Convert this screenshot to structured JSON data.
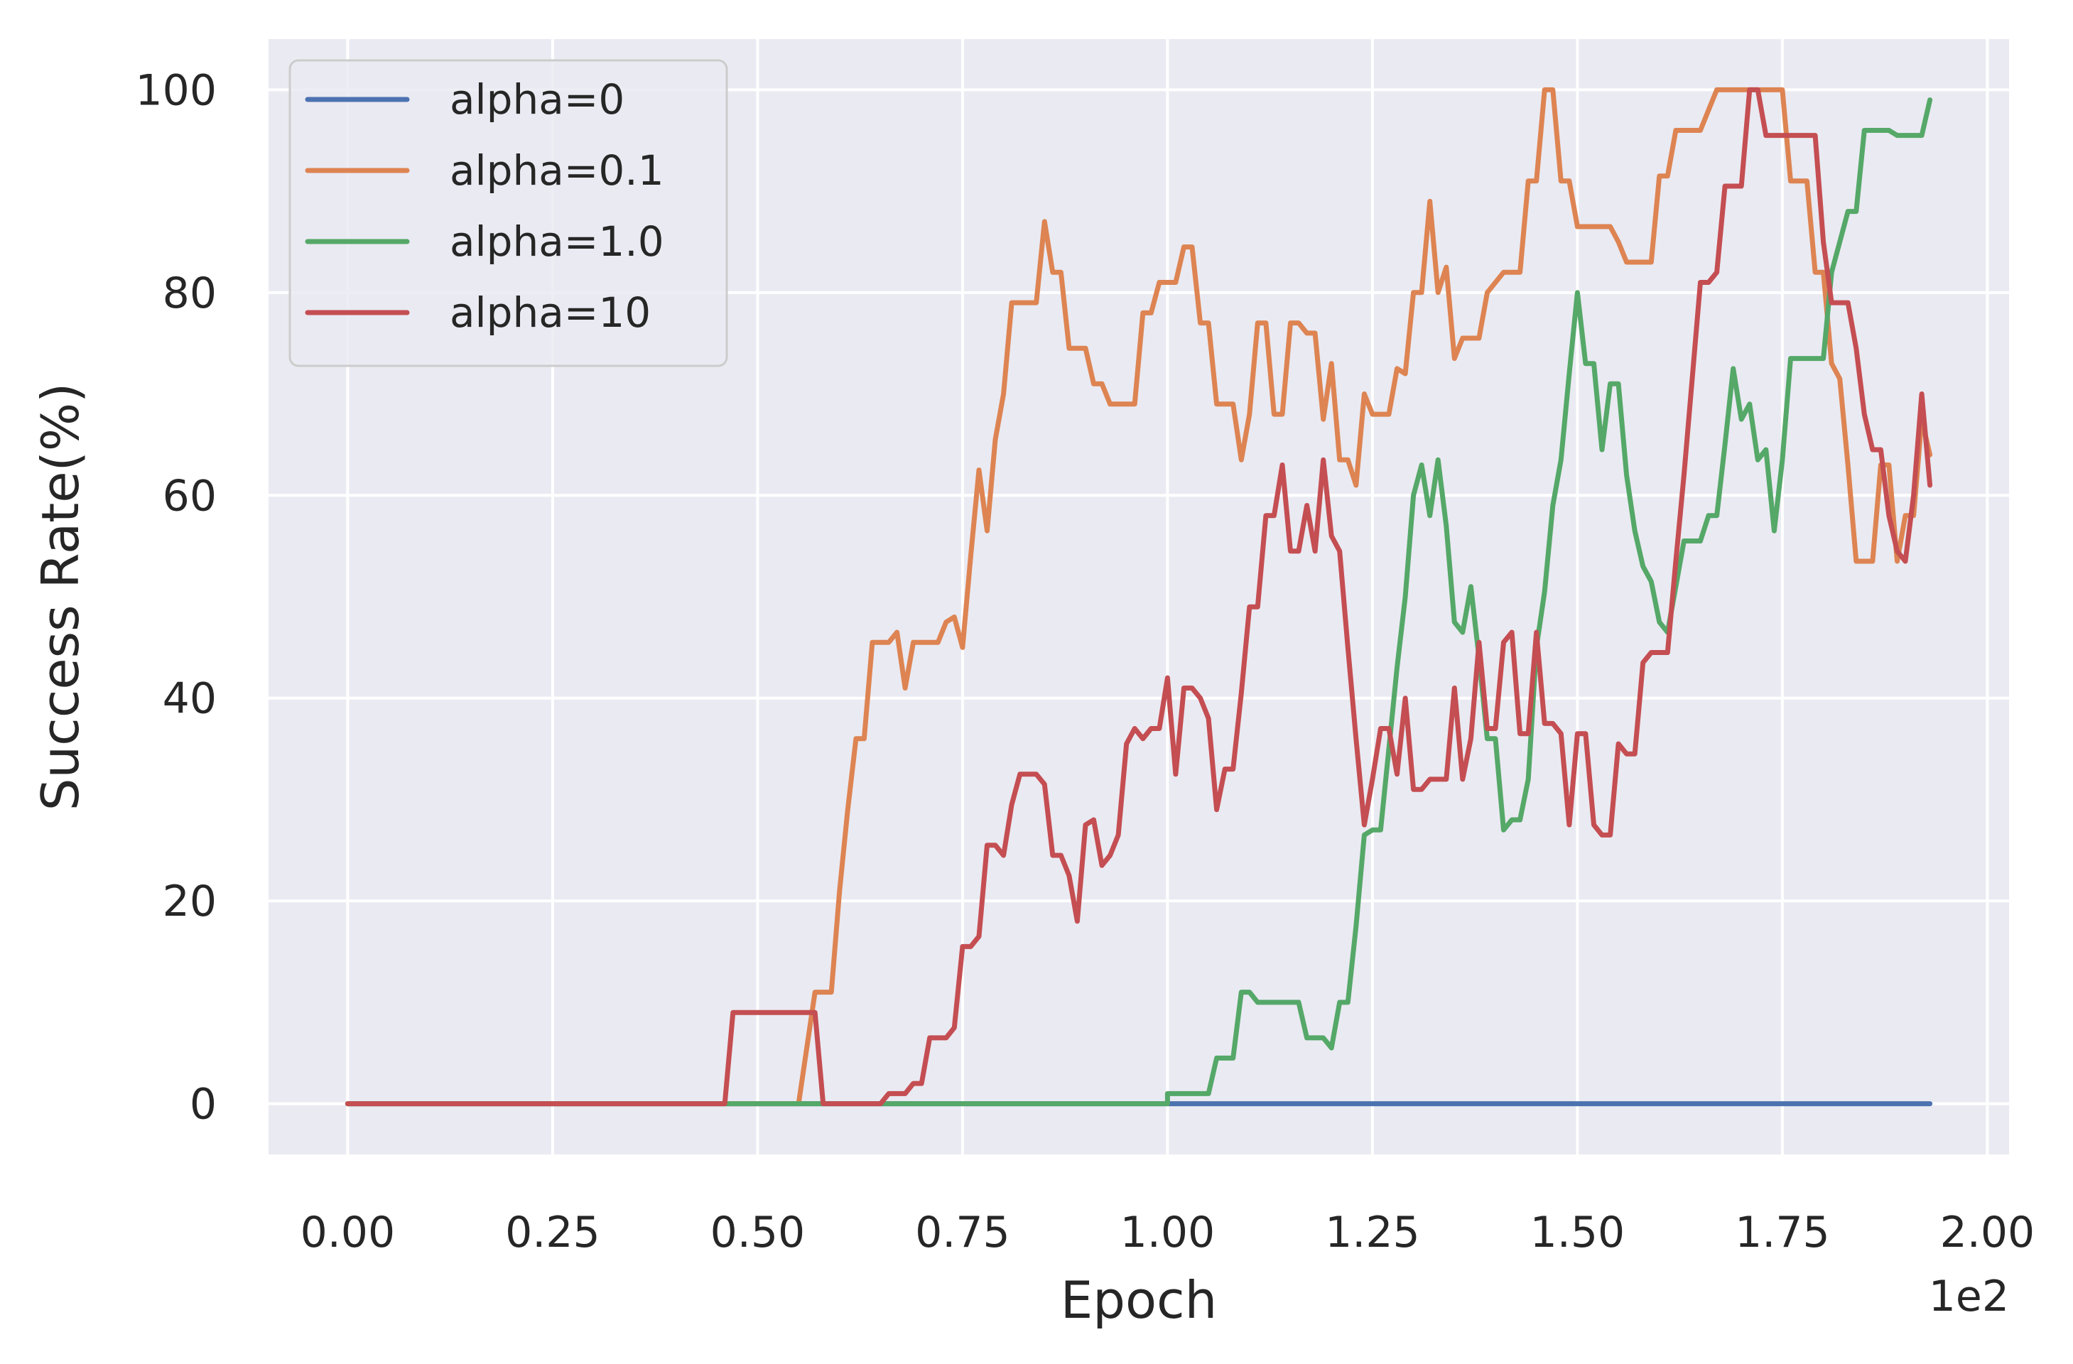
{
  "chart_data": {
    "type": "line",
    "xlabel": "Epoch",
    "ylabel": "Success Rate(%)",
    "x_offset_label": "1e2",
    "xlim": [
      -0.0965,
      2.0265
    ],
    "ylim": [
      -5,
      105
    ],
    "xticks": [
      0.0,
      0.25,
      0.5,
      0.75,
      1.0,
      1.25,
      1.5,
      1.75,
      2.0
    ],
    "xtick_labels": [
      "0.00",
      "0.25",
      "0.50",
      "0.75",
      "1.00",
      "1.25",
      "1.50",
      "1.75",
      "2.00"
    ],
    "yticks": [
      0,
      20,
      40,
      60,
      80,
      100
    ],
    "ytick_labels": [
      "0",
      "20",
      "40",
      "60",
      "80",
      "100"
    ],
    "grid": true,
    "legend_position": "top-left",
    "background": "#EAEAF2",
    "series": [
      {
        "name": "alpha=0",
        "color": "#4C72B0",
        "points": [
          [
            0.0,
            0
          ],
          [
            1.93,
            0
          ]
        ]
      },
      {
        "name": "alpha=0.1",
        "color": "#DD8452",
        "points": [
          [
            0.0,
            0
          ],
          [
            0.55,
            0
          ],
          [
            0.57,
            11
          ],
          [
            0.59,
            11
          ],
          [
            0.6,
            21
          ],
          [
            0.61,
            29
          ],
          [
            0.62,
            36
          ],
          [
            0.63,
            36
          ],
          [
            0.64,
            45.5
          ],
          [
            0.66,
            45.5
          ],
          [
            0.67,
            46.5
          ],
          [
            0.68,
            41
          ],
          [
            0.69,
            45.5
          ],
          [
            0.72,
            45.5
          ],
          [
            0.73,
            47.5
          ],
          [
            0.74,
            48
          ],
          [
            0.75,
            45
          ],
          [
            0.76,
            54
          ],
          [
            0.77,
            62.5
          ],
          [
            0.78,
            56.5
          ],
          [
            0.79,
            65.5
          ],
          [
            0.8,
            70
          ],
          [
            0.81,
            79
          ],
          [
            0.84,
            79
          ],
          [
            0.85,
            87
          ],
          [
            0.86,
            82
          ],
          [
            0.87,
            82
          ],
          [
            0.88,
            74.5
          ],
          [
            0.9,
            74.5
          ],
          [
            0.91,
            71
          ],
          [
            0.92,
            71
          ],
          [
            0.93,
            69
          ],
          [
            0.96,
            69
          ],
          [
            0.97,
            78
          ],
          [
            0.98,
            78
          ],
          [
            0.99,
            81
          ],
          [
            1.01,
            81
          ],
          [
            1.02,
            84.5
          ],
          [
            1.03,
            84.5
          ],
          [
            1.04,
            77
          ],
          [
            1.05,
            77
          ],
          [
            1.06,
            69
          ],
          [
            1.08,
            69
          ],
          [
            1.09,
            63.5
          ],
          [
            1.1,
            68
          ],
          [
            1.11,
            77
          ],
          [
            1.12,
            77
          ],
          [
            1.13,
            68
          ],
          [
            1.14,
            68
          ],
          [
            1.15,
            77
          ],
          [
            1.16,
            77
          ],
          [
            1.17,
            76
          ],
          [
            1.18,
            76
          ],
          [
            1.19,
            67.5
          ],
          [
            1.2,
            73
          ],
          [
            1.21,
            63.5
          ],
          [
            1.22,
            63.5
          ],
          [
            1.23,
            61
          ],
          [
            1.24,
            70
          ],
          [
            1.25,
            68
          ],
          [
            1.27,
            68
          ],
          [
            1.28,
            72.5
          ],
          [
            1.29,
            72
          ],
          [
            1.3,
            80
          ],
          [
            1.31,
            80
          ],
          [
            1.32,
            89
          ],
          [
            1.33,
            80
          ],
          [
            1.34,
            82.5
          ],
          [
            1.35,
            73.5
          ],
          [
            1.36,
            75.5
          ],
          [
            1.38,
            75.5
          ],
          [
            1.39,
            80
          ],
          [
            1.41,
            82
          ],
          [
            1.43,
            82
          ],
          [
            1.44,
            91
          ],
          [
            1.45,
            91
          ],
          [
            1.46,
            100
          ],
          [
            1.47,
            100
          ],
          [
            1.48,
            91
          ],
          [
            1.49,
            91
          ],
          [
            1.5,
            86.5
          ],
          [
            1.54,
            86.5
          ],
          [
            1.55,
            85
          ],
          [
            1.56,
            83
          ],
          [
            1.59,
            83
          ],
          [
            1.6,
            91.5
          ],
          [
            1.61,
            91.5
          ],
          [
            1.62,
            96
          ],
          [
            1.65,
            96
          ],
          [
            1.66,
            98
          ],
          [
            1.67,
            100
          ],
          [
            1.74,
            100
          ],
          [
            1.75,
            100
          ],
          [
            1.76,
            91
          ],
          [
            1.78,
            91
          ],
          [
            1.79,
            82
          ],
          [
            1.8,
            82
          ],
          [
            1.81,
            73
          ],
          [
            1.82,
            71.5
          ],
          [
            1.83,
            63
          ],
          [
            1.84,
            53.5
          ],
          [
            1.86,
            53.5
          ],
          [
            1.87,
            63
          ],
          [
            1.88,
            63
          ],
          [
            1.89,
            53.5
          ],
          [
            1.9,
            58
          ],
          [
            1.91,
            58
          ],
          [
            1.92,
            67.5
          ],
          [
            1.93,
            64
          ]
        ]
      },
      {
        "name": "alpha=1.0",
        "color": "#55A868",
        "points": [
          [
            0.0,
            0
          ],
          [
            1.0,
            0
          ],
          [
            1.0,
            1
          ],
          [
            1.05,
            1
          ],
          [
            1.06,
            4.5
          ],
          [
            1.08,
            4.5
          ],
          [
            1.09,
            11
          ],
          [
            1.1,
            11
          ],
          [
            1.11,
            10
          ],
          [
            1.16,
            10
          ],
          [
            1.17,
            6.5
          ],
          [
            1.19,
            6.5
          ],
          [
            1.2,
            5.5
          ],
          [
            1.21,
            10
          ],
          [
            1.22,
            10
          ],
          [
            1.23,
            17.5
          ],
          [
            1.24,
            26.5
          ],
          [
            1.25,
            27
          ],
          [
            1.26,
            27
          ],
          [
            1.27,
            35
          ],
          [
            1.28,
            43
          ],
          [
            1.29,
            50
          ],
          [
            1.3,
            60
          ],
          [
            1.31,
            63
          ],
          [
            1.32,
            58
          ],
          [
            1.33,
            63.5
          ],
          [
            1.34,
            57
          ],
          [
            1.35,
            47.5
          ],
          [
            1.36,
            46.5
          ],
          [
            1.37,
            51
          ],
          [
            1.38,
            44
          ],
          [
            1.39,
            36
          ],
          [
            1.4,
            36
          ],
          [
            1.41,
            27
          ],
          [
            1.42,
            28
          ],
          [
            1.43,
            28
          ],
          [
            1.44,
            32
          ],
          [
            1.45,
            45
          ],
          [
            1.46,
            50.5
          ],
          [
            1.47,
            59
          ],
          [
            1.48,
            63.5
          ],
          [
            1.49,
            72
          ],
          [
            1.5,
            80
          ],
          [
            1.51,
            73
          ],
          [
            1.52,
            73
          ],
          [
            1.53,
            64.5
          ],
          [
            1.54,
            71
          ],
          [
            1.55,
            71
          ],
          [
            1.56,
            62
          ],
          [
            1.57,
            56.5
          ],
          [
            1.58,
            53
          ],
          [
            1.59,
            51.5
          ],
          [
            1.6,
            47.5
          ],
          [
            1.61,
            46.5
          ],
          [
            1.62,
            51
          ],
          [
            1.63,
            55.5
          ],
          [
            1.65,
            55.5
          ],
          [
            1.66,
            58
          ],
          [
            1.67,
            58
          ],
          [
            1.68,
            65
          ],
          [
            1.69,
            72.5
          ],
          [
            1.7,
            67.5
          ],
          [
            1.71,
            69
          ],
          [
            1.72,
            63.5
          ],
          [
            1.73,
            64.5
          ],
          [
            1.74,
            56.5
          ],
          [
            1.75,
            63.5
          ],
          [
            1.76,
            73.5
          ],
          [
            1.8,
            73.5
          ],
          [
            1.81,
            82
          ],
          [
            1.82,
            85
          ],
          [
            1.83,
            88
          ],
          [
            1.84,
            88
          ],
          [
            1.85,
            96
          ],
          [
            1.88,
            96
          ],
          [
            1.89,
            95.5
          ],
          [
            1.92,
            95.5
          ],
          [
            1.93,
            99
          ]
        ]
      },
      {
        "name": "alpha=10",
        "color": "#C44E52",
        "points": [
          [
            0.0,
            0
          ],
          [
            0.46,
            0
          ],
          [
            0.47,
            9
          ],
          [
            0.57,
            9
          ],
          [
            0.58,
            0
          ],
          [
            0.65,
            0
          ],
          [
            0.66,
            1
          ],
          [
            0.68,
            1
          ],
          [
            0.69,
            2
          ],
          [
            0.7,
            2
          ],
          [
            0.71,
            6.5
          ],
          [
            0.73,
            6.5
          ],
          [
            0.74,
            7.5
          ],
          [
            0.75,
            15.5
          ],
          [
            0.76,
            15.5
          ],
          [
            0.77,
            16.5
          ],
          [
            0.78,
            25.5
          ],
          [
            0.79,
            25.5
          ],
          [
            0.8,
            24.5
          ],
          [
            0.81,
            29.5
          ],
          [
            0.82,
            32.5
          ],
          [
            0.84,
            32.5
          ],
          [
            0.85,
            31.5
          ],
          [
            0.86,
            24.5
          ],
          [
            0.87,
            24.5
          ],
          [
            0.88,
            22.5
          ],
          [
            0.89,
            18
          ],
          [
            0.9,
            27.5
          ],
          [
            0.91,
            28
          ],
          [
            0.92,
            23.5
          ],
          [
            0.93,
            24.5
          ],
          [
            0.94,
            26.5
          ],
          [
            0.95,
            35.5
          ],
          [
            0.96,
            37
          ],
          [
            0.97,
            36
          ],
          [
            0.98,
            37
          ],
          [
            0.99,
            37
          ],
          [
            1.0,
            42
          ],
          [
            1.01,
            32.5
          ],
          [
            1.02,
            41
          ],
          [
            1.03,
            41
          ],
          [
            1.04,
            40
          ],
          [
            1.05,
            38
          ],
          [
            1.06,
            29
          ],
          [
            1.07,
            33
          ],
          [
            1.08,
            33
          ],
          [
            1.09,
            40.5
          ],
          [
            1.1,
            49
          ],
          [
            1.11,
            49
          ],
          [
            1.12,
            58
          ],
          [
            1.13,
            58
          ],
          [
            1.14,
            63
          ],
          [
            1.15,
            54.5
          ],
          [
            1.16,
            54.5
          ],
          [
            1.17,
            59
          ],
          [
            1.18,
            54.5
          ],
          [
            1.19,
            63.5
          ],
          [
            1.2,
            56
          ],
          [
            1.21,
            54.5
          ],
          [
            1.22,
            45
          ],
          [
            1.23,
            36
          ],
          [
            1.24,
            27.5
          ],
          [
            1.25,
            32
          ],
          [
            1.26,
            37
          ],
          [
            1.27,
            37
          ],
          [
            1.28,
            32.5
          ],
          [
            1.29,
            40
          ],
          [
            1.3,
            31
          ],
          [
            1.31,
            31
          ],
          [
            1.32,
            32
          ],
          [
            1.34,
            32
          ],
          [
            1.35,
            41
          ],
          [
            1.36,
            32
          ],
          [
            1.37,
            36
          ],
          [
            1.38,
            45.5
          ],
          [
            1.39,
            37
          ],
          [
            1.4,
            37
          ],
          [
            1.41,
            45.5
          ],
          [
            1.42,
            46.5
          ],
          [
            1.43,
            36.5
          ],
          [
            1.44,
            36.5
          ],
          [
            1.45,
            46.5
          ],
          [
            1.46,
            37.5
          ],
          [
            1.47,
            37.5
          ],
          [
            1.48,
            36.5
          ],
          [
            1.49,
            27.5
          ],
          [
            1.5,
            36.5
          ],
          [
            1.51,
            36.5
          ],
          [
            1.52,
            27.5
          ],
          [
            1.53,
            26.5
          ],
          [
            1.54,
            26.5
          ],
          [
            1.55,
            35.5
          ],
          [
            1.56,
            34.5
          ],
          [
            1.57,
            34.5
          ],
          [
            1.58,
            43.5
          ],
          [
            1.59,
            44.5
          ],
          [
            1.61,
            44.5
          ],
          [
            1.62,
            53.5
          ],
          [
            1.63,
            62
          ],
          [
            1.64,
            71.5
          ],
          [
            1.65,
            81
          ],
          [
            1.66,
            81
          ],
          [
            1.67,
            82
          ],
          [
            1.68,
            90.5
          ],
          [
            1.7,
            90.5
          ],
          [
            1.71,
            100
          ],
          [
            1.72,
            100
          ],
          [
            1.73,
            95.5
          ],
          [
            1.79,
            95.5
          ],
          [
            1.8,
            85
          ],
          [
            1.81,
            79
          ],
          [
            1.83,
            79
          ],
          [
            1.84,
            74.5
          ],
          [
            1.85,
            68
          ],
          [
            1.86,
            64.5
          ],
          [
            1.87,
            64.5
          ],
          [
            1.88,
            58
          ],
          [
            1.89,
            54.5
          ],
          [
            1.9,
            53.5
          ],
          [
            1.91,
            60
          ],
          [
            1.92,
            70
          ],
          [
            1.93,
            61
          ]
        ]
      }
    ]
  }
}
